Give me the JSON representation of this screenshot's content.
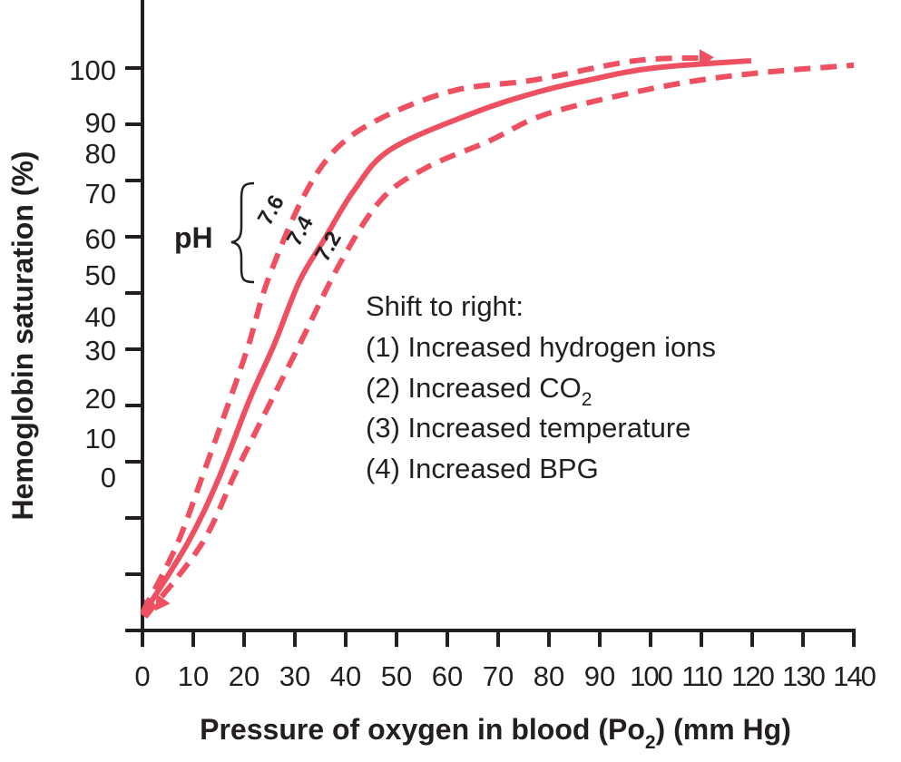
{
  "chart_data": {
    "type": "line",
    "title": "",
    "xlabel": "Pressure of oxygen in blood (Po2) (mm Hg)",
    "xlabel_parts": {
      "main": "Pressure of oxygen in blood (P",
      "o": "o",
      "sub": "2",
      "tail": ") (mm Hg)"
    },
    "ylabel": "Hemoglobin saturation (%)",
    "xlim": [
      0,
      140
    ],
    "ylim": [
      0,
      100
    ],
    "grid": false,
    "x_ticks": [
      0,
      10,
      20,
      30,
      40,
      50,
      60,
      70,
      80,
      90,
      100,
      110,
      120,
      130,
      140
    ],
    "x_tick_labels": [
      "0",
      "10",
      "20",
      "30",
      "40",
      "50",
      "60",
      "70",
      "80",
      "90",
      "100",
      "110",
      "120",
      "130",
      "140"
    ],
    "y_tick_labels": [
      "100",
      "90",
      "80",
      "70",
      "60",
      "50",
      "40",
      "30",
      "20",
      "10",
      "0"
    ],
    "color": "#EE5061",
    "group_label": "pH",
    "series": [
      {
        "name": "7.6",
        "style": "dashed",
        "x": [
          0,
          6.8,
          12.1,
          16.6,
          20.9,
          24.6,
          31.4,
          38.0,
          47.0,
          61.3,
          77.3,
          97.0,
          111.8
        ],
        "y": [
          3.2,
          15.3,
          28.2,
          39.5,
          50.8,
          62.1,
          76.6,
          85.5,
          91.1,
          96.0,
          97.9,
          101.3,
          101.8
        ]
      },
      {
        "name": "7.4",
        "style": "solid",
        "x": [
          0,
          8.75,
          14.8,
          21.1,
          25.9,
          30.9,
          35.7,
          41.6,
          48.8,
          64.8,
          77.3,
          88.0,
          100.5,
          119.8
        ],
        "y": [
          2.7,
          15.3,
          26.6,
          41.1,
          50.8,
          62.1,
          69.4,
          78.2,
          85.5,
          91.9,
          95.6,
          97.9,
          100.0,
          101.3
        ]
      },
      {
        "name": "7.2",
        "style": "dashed",
        "x": [
          0.5,
          11.6,
          18.4,
          24.6,
          30.9,
          38.9,
          47.0,
          55.9,
          68.4,
          77.3,
          88.0,
          105.9,
          122.0,
          140
        ],
        "y": [
          2.4,
          15.3,
          28.2,
          39.5,
          50.8,
          65.3,
          76.6,
          82.3,
          87.1,
          91.1,
          93.9,
          97.3,
          99.2,
          100.5
        ]
      }
    ],
    "annotation": {
      "heading": "Shift to right:",
      "items": [
        {
          "text": "(1) Increased hydrogen ions",
          "sub": ""
        },
        {
          "text": "(2) Increased CO",
          "sub": "2"
        },
        {
          "text": "(3) Increased temperature",
          "sub": ""
        },
        {
          "text": "(4) Increased BPG",
          "sub": ""
        }
      ]
    }
  }
}
